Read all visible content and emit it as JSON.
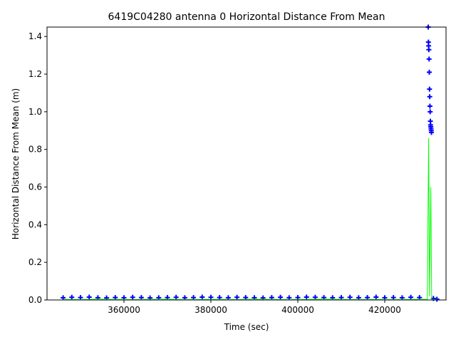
{
  "chart_data": {
    "type": "scatter-line",
    "title": "6419C04280 antenna 0 Horizontal Distance From Mean",
    "x_label": "Time (sec)",
    "y_label": "Horizontal Distance From Mean (m)",
    "xlim": [
      342300,
      434100
    ],
    "ylim": [
      0,
      1.45
    ],
    "xticks": [
      360000,
      380000,
      400000,
      420000
    ],
    "yticks": [
      {
        "value": 0,
        "label": "0.0"
      },
      {
        "value": 0.2,
        "label": "0.2"
      },
      {
        "value": 0.4,
        "label": "0.4"
      },
      {
        "value": 0.6,
        "label": "0.6"
      },
      {
        "value": 0.8,
        "label": "0.8"
      },
      {
        "value": 1.0,
        "label": "1.0"
      },
      {
        "value": 1.2,
        "label": "1.2"
      },
      {
        "value": 1.4,
        "label": "1.4"
      }
    ],
    "series": [
      {
        "color": "#0000ff",
        "marker": "plus",
        "x": [
          346000,
          348000,
          350000,
          352000,
          354000,
          356000,
          358000,
          360000,
          362000,
          364000,
          366000,
          368000,
          370000,
          372000,
          374000,
          376000,
          378000,
          380000,
          382000,
          384000,
          386000,
          388000,
          390000,
          392000,
          394000,
          396000,
          398000,
          400000,
          402000,
          404000,
          406000,
          408000,
          410000,
          412000,
          414000,
          416000,
          418000,
          420000,
          422000,
          424000,
          426000,
          428000,
          430000,
          430050,
          430100,
          430150,
          430200,
          430250,
          430300,
          430350,
          430400,
          430450,
          430500,
          430550,
          430600,
          430650,
          430700,
          430750,
          431200,
          432000
        ],
        "values": [
          0.012,
          0.014,
          0.013,
          0.015,
          0.012,
          0.011,
          0.013,
          0.012,
          0.014,
          0.013,
          0.011,
          0.012,
          0.013,
          0.014,
          0.012,
          0.013,
          0.015,
          0.014,
          0.013,
          0.012,
          0.014,
          0.013,
          0.012,
          0.011,
          0.013,
          0.014,
          0.012,
          0.013,
          0.015,
          0.014,
          0.013,
          0.012,
          0.013,
          0.014,
          0.012,
          0.013,
          0.015,
          0.012,
          0.013,
          0.012,
          0.014,
          0.013,
          1.45,
          1.37,
          1.35,
          1.33,
          1.28,
          1.21,
          1.12,
          1.08,
          1.03,
          1.0,
          0.95,
          0.93,
          0.92,
          0.91,
          0.9,
          0.89,
          0.008,
          0.004
        ]
      },
      {
        "color": "#00ff00",
        "marker": "line",
        "x": [
          346000,
          350000,
          354000,
          358000,
          362000,
          366000,
          370000,
          374000,
          378000,
          382000,
          386000,
          390000,
          394000,
          398000,
          402000,
          406000,
          410000,
          414000,
          418000,
          422000,
          426000,
          429800,
          430100,
          430300,
          430600,
          430800,
          432000
        ],
        "values": [
          0.003,
          0.002,
          0.004,
          0.003,
          0.002,
          0.003,
          0.004,
          0.002,
          0.003,
          0.003,
          0.002,
          0.004,
          0.003,
          0.002,
          0.003,
          0.004,
          0.003,
          0.002,
          0.003,
          0.002,
          0.003,
          0.004,
          0.86,
          0.02,
          0.6,
          0.003,
          0.002
        ]
      }
    ]
  }
}
